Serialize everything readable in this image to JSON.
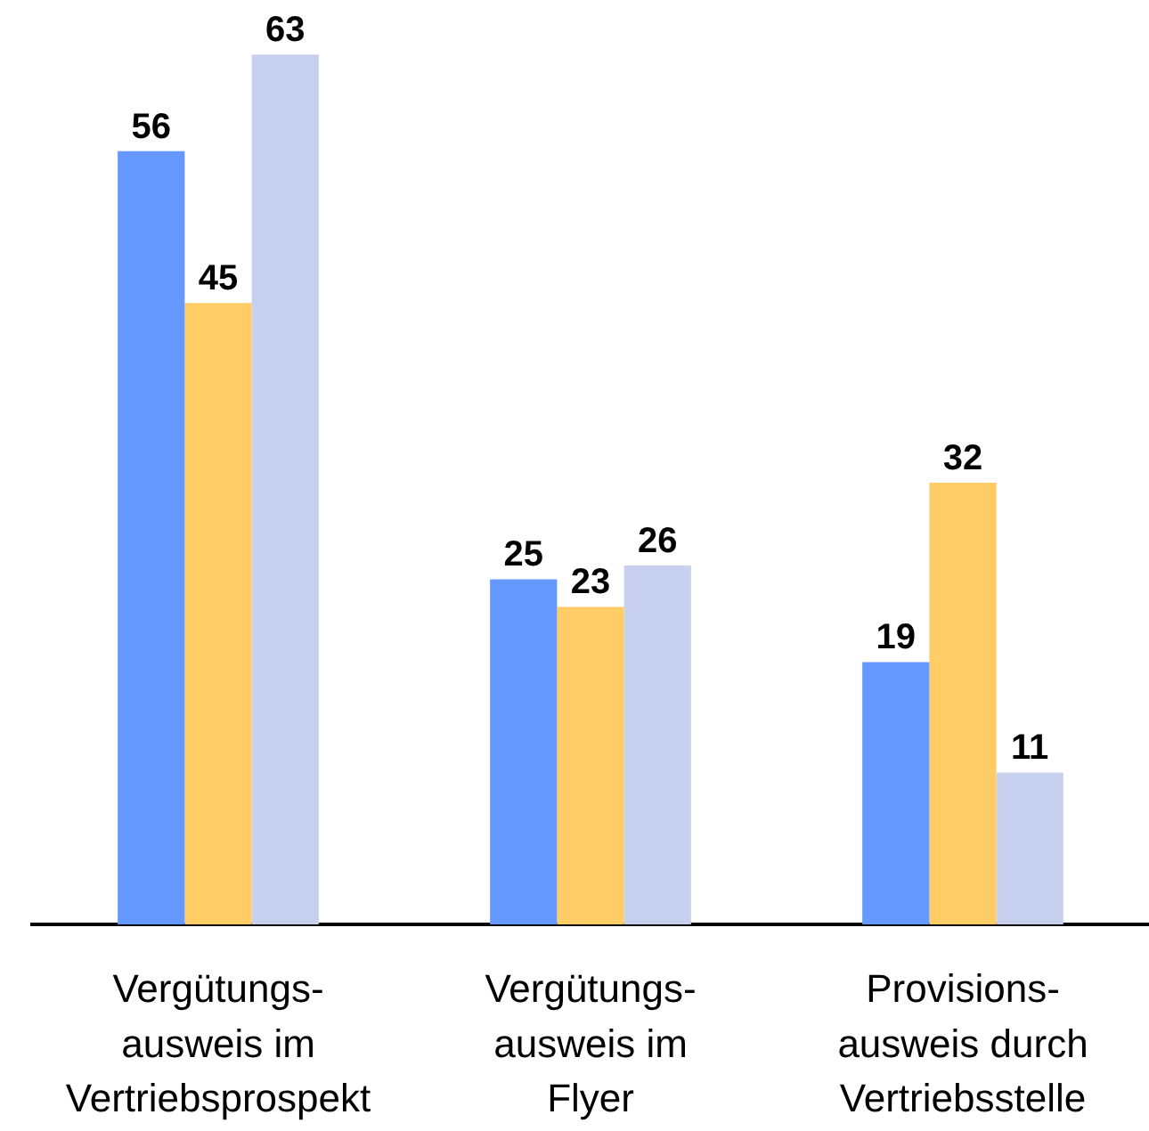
{
  "chart_data": {
    "type": "bar",
    "categories": [
      "Vergütungs-\nausweis im\nVertriebsprospekt",
      "Vergütungs-\nausweis im\nFlyer",
      "Provisions-\nausweis durch\nVertriebsstelle"
    ],
    "series": [
      {
        "color": "#6699ff",
        "values": [
          56,
          25,
          19
        ]
      },
      {
        "color": "#ffcc66",
        "values": [
          45,
          23,
          32
        ]
      },
      {
        "color": "#c8d0f0",
        "values": [
          63,
          26,
          11
        ]
      }
    ],
    "data_labels": true,
    "legend": false,
    "grid": false
  }
}
